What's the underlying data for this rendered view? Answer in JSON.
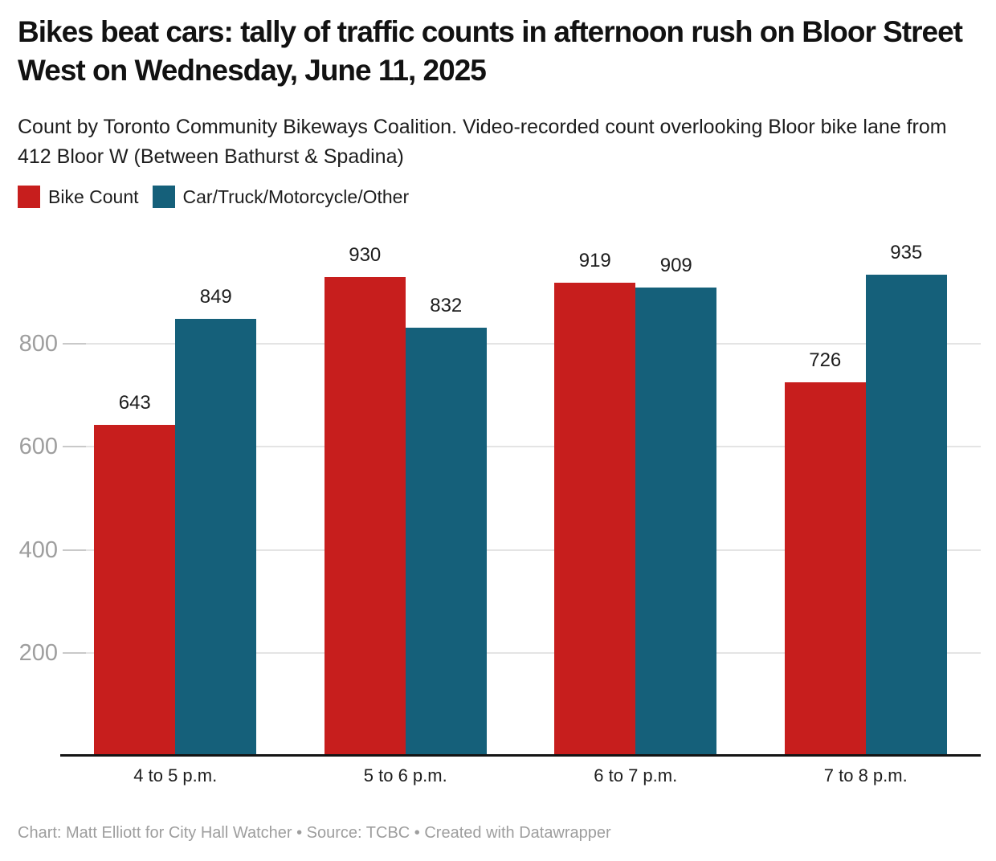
{
  "header": {
    "title": "Bikes beat cars: tally of traffic counts in afternoon rush on Bloor Street West on Wednesday, June 11, 2025",
    "subtitle": "Count by Toronto Community Bikeways Coalition. Video-recorded count overlooking Bloor bike lane from 412 Bloor W (Between Bathurst & Spadina)"
  },
  "legend": {
    "items": [
      {
        "label": "Bike Count",
        "color": "#c71e1d"
      },
      {
        "label": "Car/Truck/Motorcycle/Other",
        "color": "#15607a"
      }
    ]
  },
  "chart_data": {
    "type": "bar",
    "title": "Bikes beat cars: tally of traffic counts in afternoon rush on Bloor Street West on Wednesday, June 11, 2025",
    "categories": [
      "4 to 5 p.m.",
      "5 to 6 p.m.",
      "6 to 7 p.m.",
      "7 to 8 p.m."
    ],
    "series": [
      {
        "name": "Bike Count",
        "color": "#c71e1d",
        "values": [
          643,
          930,
          919,
          726
        ]
      },
      {
        "name": "Car/Truck/Motorcycle/Other",
        "color": "#15607a",
        "values": [
          849,
          832,
          909,
          935
        ]
      }
    ],
    "yticks": [
      200,
      400,
      600,
      800
    ],
    "ylim": [
      0,
      975
    ],
    "grid": true,
    "legend_position": "top",
    "value_labels": true,
    "xlabel": "",
    "ylabel": ""
  },
  "footer": {
    "credit": "Chart: Matt Elliott for City Hall Watcher • Source: TCBC • Created with Datawrapper"
  },
  "colors": {
    "bike": "#c71e1d",
    "car": "#15607a",
    "gridline": "#e4e4e4",
    "tick": "#c9c9c9",
    "axis": "#141414",
    "muted_text": "#9e9e9e",
    "dark_text": "#1d1d1d"
  }
}
